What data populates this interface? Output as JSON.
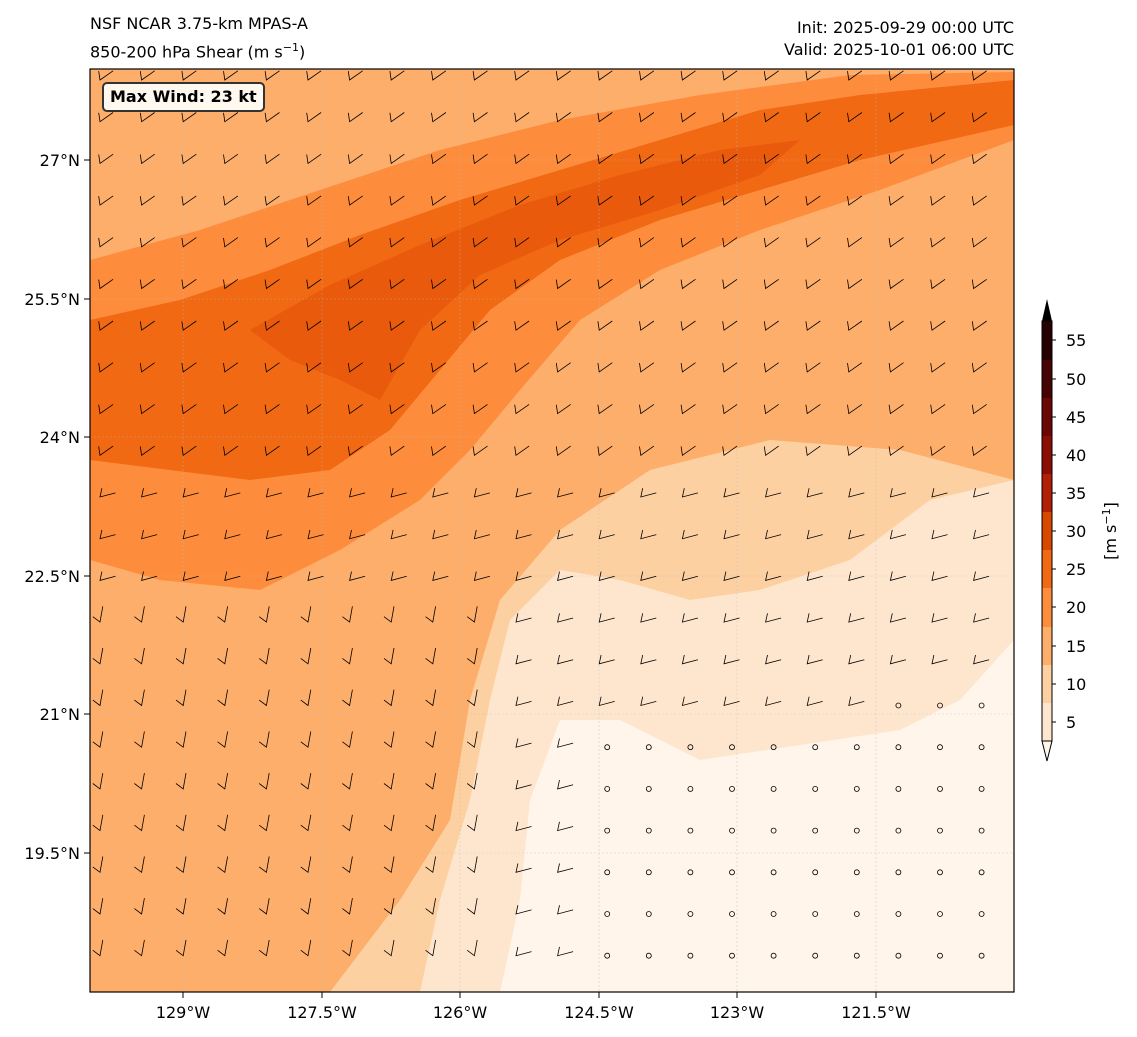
{
  "header": {
    "model": "NSF NCAR 3.75-km MPAS-A",
    "field_prefix": "850-200 hPa Shear (m s",
    "field_exp": "−1",
    "field_suffix": ")",
    "init": "Init: 2025-09-29 00:00 UTC",
    "valid": "Valid: 2025-10-01 06:00 UTC"
  },
  "annotation": {
    "max_wind": "Max Wind: 23 kt"
  },
  "axes": {
    "lon_ticks": [
      "129°W",
      "127.5°W",
      "126°W",
      "124.5°W",
      "123°W",
      "121.5°W"
    ],
    "lat_ticks": [
      "27°N",
      "25.5°N",
      "24°N",
      "22.5°N",
      "21°N",
      "19.5°N"
    ]
  },
  "colorbar": {
    "levels": [
      5,
      10,
      15,
      20,
      25,
      30,
      35,
      40,
      45,
      50,
      55
    ],
    "tick_labels": [
      "5",
      "10",
      "15",
      "20",
      "25",
      "30",
      "35",
      "40",
      "45",
      "50",
      "55"
    ],
    "label_prefix": "[m s",
    "label_exp": "−1",
    "label_suffix": "]",
    "colors": [
      "#fff5eb",
      "#fee6ce",
      "#fdd0a2",
      "#fdae6b",
      "#fd8d3c",
      "#f16913",
      "#d94801",
      "#b01f06",
      "#8c0d04",
      "#6a0704",
      "#450303",
      "#260101",
      "#000000"
    ]
  }
}
